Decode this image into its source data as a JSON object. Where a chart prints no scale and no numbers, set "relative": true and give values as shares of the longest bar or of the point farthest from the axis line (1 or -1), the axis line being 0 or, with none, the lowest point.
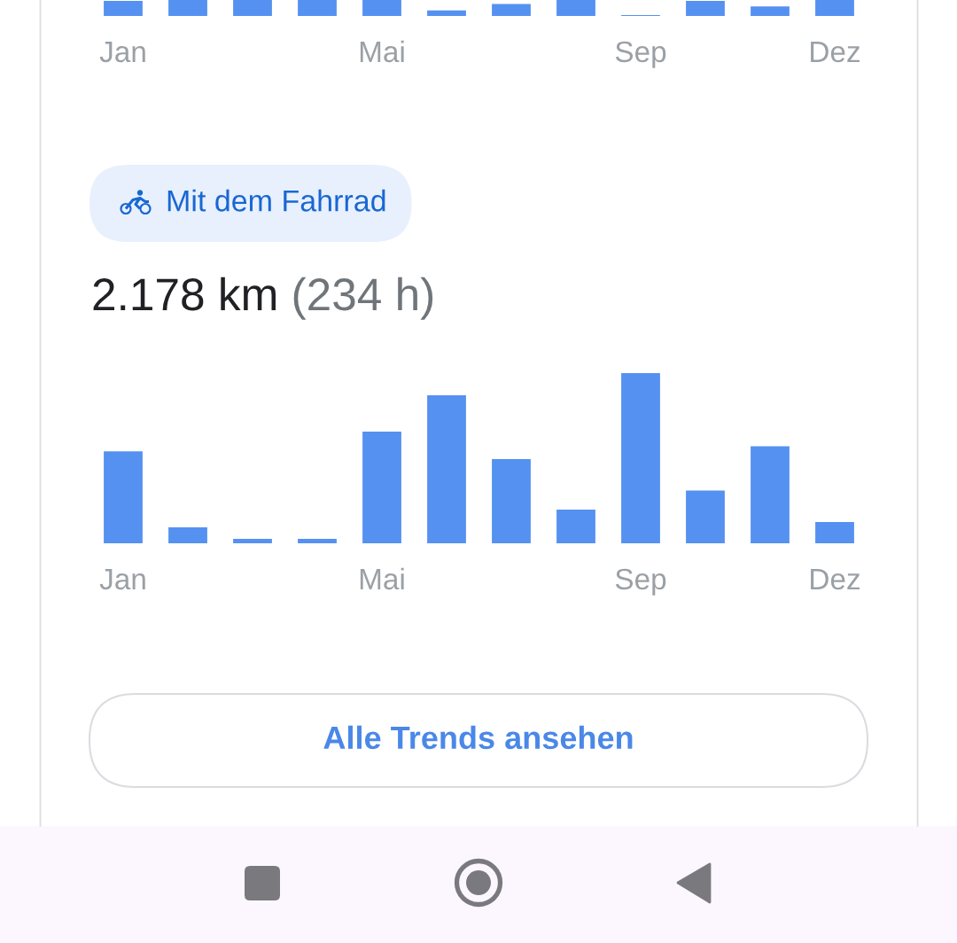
{
  "chart_data": [
    {
      "type": "bar",
      "relative": true,
      "categories": [
        "Jan",
        null,
        null,
        null,
        "Mai",
        null,
        null,
        null,
        "Sep",
        null,
        null,
        "Dez"
      ],
      "values": [
        0.95,
        1,
        1,
        1,
        1,
        0.35,
        0.75,
        1,
        0.05,
        0.95,
        0.6,
        1
      ],
      "color": "#5591f0"
    },
    {
      "type": "bar",
      "relative": true,
      "title": "Mit dem Fahrrad",
      "subtitle": "2.178 km",
      "annotations": [
        "(234 h)",
        "Alle Trends ansehen"
      ],
      "categories": [
        "Jan",
        null,
        null,
        null,
        "Mai",
        null,
        null,
        null,
        "Sep",
        null,
        null,
        "Dez"
      ],
      "values": [
        0.54,
        0.094,
        0.026,
        0.026,
        0.656,
        0.87,
        0.495,
        0.198,
        1,
        0.31,
        0.57,
        0.125
      ],
      "color": "#5591f0"
    }
  ]
}
